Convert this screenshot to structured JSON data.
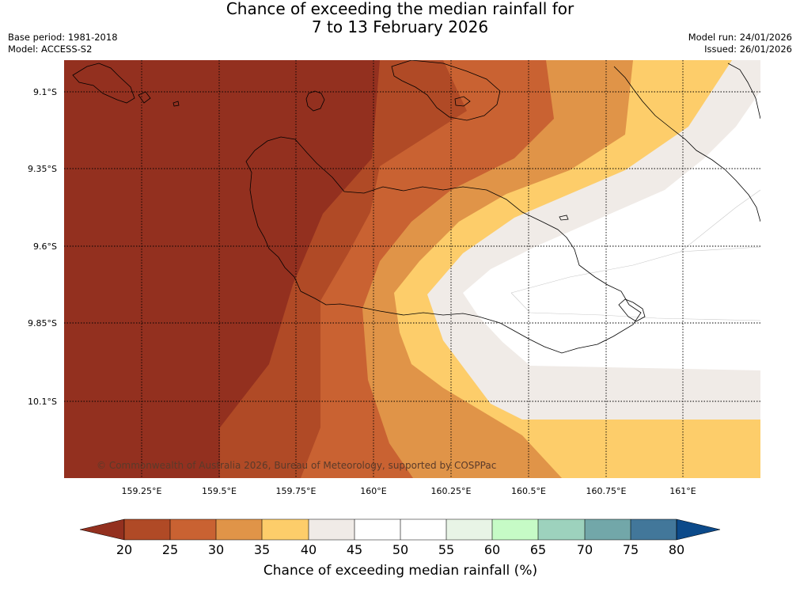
{
  "title": {
    "line1": "Chance of exceeding the median rainfall for",
    "line2": "7 to 13 February 2026"
  },
  "header_left": {
    "base_period": "Base period: 1981-2018",
    "model": "Model: ACCESS-S2"
  },
  "header_right": {
    "model_run": "Model run: 24/01/2026",
    "issued": "Issued: 26/01/2026"
  },
  "map": {
    "lat_ticks": [
      "9.1°S",
      "9.35°S",
      "9.6°S",
      "9.85°S",
      "10.1°S"
    ],
    "lon_ticks": [
      "159.25°E",
      "159.5°E",
      "159.75°E",
      "160°E",
      "160.25°E",
      "160.5°E",
      "160.75°E",
      "161°E"
    ],
    "copyright": "© Commonwealth of Australia 2026, Bureau of Meteorology, supported by COSPPac"
  },
  "colorbar": {
    "ticks": [
      "20",
      "25",
      "30",
      "35",
      "40",
      "45",
      "50",
      "55",
      "60",
      "65",
      "70",
      "75",
      "80"
    ],
    "label": "Chance of exceeding median rainfall (%)",
    "colors": {
      "under": "#93301f",
      "b20_25": "#b04a26",
      "b25_30": "#c96232",
      "b30_35": "#e09448",
      "b35_40": "#fdcd6a",
      "b40_45": "#f0ebe7",
      "b45_50": "#ffffff",
      "b50_55": "#ffffff",
      "b55_60": "#e8f4e6",
      "b60_65": "#c6fbc6",
      "b65_70": "#9dd2bd",
      "b70_75": "#72a7a9",
      "b75_80": "#42779a",
      "over": "#0c4a8a"
    }
  }
}
